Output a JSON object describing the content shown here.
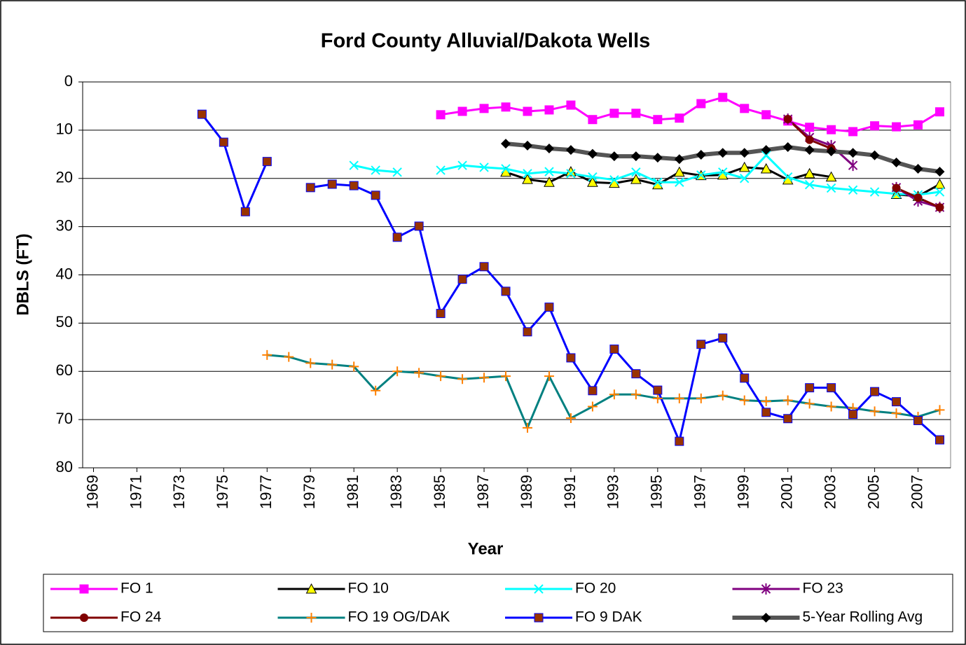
{
  "chart_data": {
    "type": "line",
    "title": "Ford County Alluvial/Dakota Wells",
    "x_label": "Year",
    "y_label": "DBLS (FT)",
    "x": [
      1969,
      1970,
      1971,
      1972,
      1973,
      1974,
      1975,
      1976,
      1977,
      1978,
      1979,
      1980,
      1981,
      1982,
      1983,
      1984,
      1985,
      1986,
      1987,
      1988,
      1989,
      1990,
      1991,
      1992,
      1993,
      1994,
      1995,
      1996,
      1997,
      1998,
      1999,
      2000,
      2001,
      2002,
      2003,
      2004,
      2005,
      2006,
      2007,
      2008
    ],
    "xlim": [
      1968.5,
      2008.5
    ],
    "xticks": [
      1969,
      1971,
      1973,
      1975,
      1977,
      1979,
      1981,
      1983,
      1985,
      1987,
      1989,
      1991,
      1993,
      1995,
      1997,
      1999,
      2001,
      2003,
      2005,
      2007
    ],
    "ylim": [
      0,
      80
    ],
    "y_inverted": true,
    "yticks": [
      0,
      10,
      20,
      30,
      40,
      50,
      60,
      70,
      80
    ],
    "grid": true,
    "legend": "bottom",
    "series": [
      {
        "name": "FO 1",
        "color": "#ff00ff",
        "marker": "square",
        "marker_color": "#ff00ff",
        "values": [
          null,
          null,
          null,
          null,
          null,
          null,
          null,
          null,
          null,
          null,
          null,
          null,
          null,
          null,
          null,
          null,
          6.8,
          6.1,
          5.5,
          5.2,
          6.1,
          5.8,
          4.8,
          7.8,
          6.5,
          6.5,
          7.8,
          7.5,
          4.5,
          3.2,
          5.5,
          6.8,
          8.1,
          9.4,
          9.9,
          10.3,
          9.1,
          9.3,
          8.9,
          6.2
        ]
      },
      {
        "name": "FO 10",
        "color": "#000000",
        "marker": "triangle",
        "marker_color": "#ffff00",
        "values": [
          null,
          null,
          null,
          null,
          null,
          null,
          null,
          null,
          null,
          null,
          null,
          null,
          null,
          null,
          null,
          null,
          null,
          null,
          null,
          18.7,
          20.2,
          20.8,
          18.6,
          20.8,
          21,
          20.2,
          21.3,
          18.7,
          19.4,
          19.3,
          17.7,
          18,
          20.3,
          19,
          19.7,
          null,
          null,
          23.3,
          23.7,
          21.2
        ]
      },
      {
        "name": "FO 20",
        "color": "#00ffff",
        "marker": "x",
        "marker_color": "#00ffff",
        "values": [
          null,
          null,
          null,
          null,
          null,
          null,
          null,
          null,
          null,
          null,
          null,
          null,
          17.3,
          18.3,
          18.7,
          null,
          18.3,
          17.3,
          17.7,
          18,
          19,
          18.6,
          19,
          19.7,
          20.3,
          18.7,
          20.8,
          20.8,
          19.3,
          18.7,
          20,
          15.2,
          19.7,
          21.3,
          22,
          22.4,
          22.8,
          23.2,
          23.4,
          22.8
        ]
      },
      {
        "name": "FO 23",
        "color": "#800080",
        "marker": "star",
        "marker_color": "#800080",
        "values": [
          null,
          null,
          null,
          null,
          null,
          null,
          null,
          null,
          null,
          null,
          null,
          null,
          null,
          null,
          null,
          null,
          null,
          null,
          null,
          null,
          null,
          null,
          null,
          null,
          null,
          null,
          null,
          null,
          null,
          null,
          null,
          null,
          7.7,
          11.5,
          13.2,
          17.3,
          null,
          21.9,
          24.7,
          26
        ]
      },
      {
        "name": "FO 24",
        "color": "#800000",
        "marker": "circle",
        "marker_color": "#800000",
        "values": [
          null,
          null,
          null,
          null,
          null,
          null,
          null,
          null,
          null,
          null,
          null,
          null,
          null,
          null,
          null,
          null,
          null,
          null,
          null,
          null,
          null,
          null,
          null,
          null,
          null,
          null,
          null,
          null,
          null,
          null,
          null,
          null,
          7.7,
          12,
          13.8,
          null,
          null,
          22,
          24,
          26
        ]
      },
      {
        "name": "FO 19 OG/DAK",
        "color": "#008080",
        "marker": "plus",
        "marker_color": "#ff8000",
        "values": [
          null,
          null,
          null,
          null,
          null,
          null,
          null,
          null,
          56.6,
          57,
          58.3,
          58.6,
          59,
          64,
          60,
          60.3,
          61,
          61.6,
          61.3,
          61,
          71.7,
          61,
          69.7,
          67.3,
          64.8,
          64.8,
          65.6,
          65.6,
          65.6,
          65,
          66,
          66.2,
          66,
          66.7,
          67.3,
          67.6,
          68.3,
          68.7,
          69.4,
          68
        ]
      },
      {
        "name": "FO 9 DAK",
        "color": "#0000ff",
        "marker": "square",
        "marker_color": "#993300",
        "values": [
          null,
          null,
          null,
          null,
          null,
          6.7,
          12.5,
          26.9,
          16.5,
          null,
          21.9,
          21.2,
          21.5,
          23.5,
          32.2,
          29.9,
          48,
          40.9,
          38.3,
          43.4,
          51.8,
          46.7,
          57.2,
          64,
          55.4,
          60.5,
          63.9,
          74.5,
          54.4,
          53.1,
          61.4,
          68.5,
          69.8,
          63.4,
          63.4,
          68.9,
          64.2,
          66.3,
          70.2,
          74.2
        ]
      },
      {
        "name": "5-Year Rolling Avg",
        "color": "#555555",
        "marker": "diamond",
        "marker_color": "#000000",
        "thick": true,
        "values": [
          null,
          null,
          null,
          null,
          null,
          null,
          null,
          null,
          null,
          null,
          null,
          null,
          null,
          null,
          null,
          null,
          null,
          null,
          null,
          12.8,
          13.2,
          13.8,
          14.1,
          14.9,
          15.4,
          15.4,
          15.7,
          16,
          15.1,
          14.7,
          14.7,
          14.1,
          13.5,
          14.1,
          14.4,
          14.7,
          15.2,
          16.7,
          18,
          18.6
        ]
      }
    ]
  }
}
